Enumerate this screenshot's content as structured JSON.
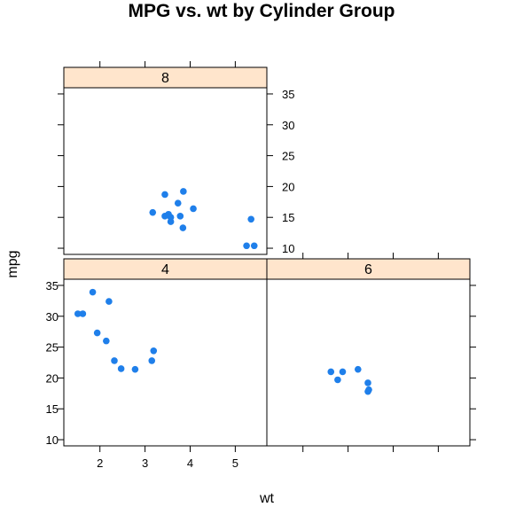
{
  "chart_data": {
    "type": "scatter",
    "title": "MPG vs. wt by Cylinder Group",
    "xlabel": "wt",
    "ylabel": "mpg",
    "xlim": [
      1.2,
      5.7
    ],
    "ylim": [
      9,
      36
    ],
    "x_ticks": [
      2,
      3,
      4,
      5
    ],
    "y_ticks": [
      10,
      15,
      20,
      25,
      30,
      35
    ],
    "point_color": "#1f7fea",
    "strip_color": "#ffe5cc",
    "panels": [
      {
        "name": "8",
        "points": [
          [
            3.44,
            18.7
          ],
          [
            3.57,
            14.3
          ],
          [
            4.07,
            16.4
          ],
          [
            3.73,
            17.3
          ],
          [
            3.78,
            15.2
          ],
          [
            5.25,
            10.4
          ],
          [
            5.42,
            10.4
          ],
          [
            5.35,
            14.7
          ],
          [
            3.52,
            15.5
          ],
          [
            3.44,
            15.2
          ],
          [
            3.84,
            13.3
          ],
          [
            3.85,
            19.2
          ],
          [
            3.17,
            15.8
          ],
          [
            3.57,
            15.0
          ]
        ]
      },
      {
        "name": "4",
        "points": [
          [
            2.32,
            22.8
          ],
          [
            3.19,
            24.4
          ],
          [
            3.15,
            22.8
          ],
          [
            2.2,
            32.4
          ],
          [
            1.62,
            30.4
          ],
          [
            1.84,
            33.9
          ],
          [
            2.47,
            21.5
          ],
          [
            1.94,
            27.3
          ],
          [
            2.14,
            26.0
          ],
          [
            1.51,
            30.4
          ],
          [
            2.78,
            21.4
          ]
        ]
      },
      {
        "name": "6",
        "points": [
          [
            2.62,
            21.0
          ],
          [
            2.88,
            21.0
          ],
          [
            3.22,
            21.4
          ],
          [
            3.46,
            18.1
          ],
          [
            3.44,
            19.2
          ],
          [
            3.44,
            17.8
          ],
          [
            2.77,
            19.7
          ]
        ]
      }
    ]
  }
}
